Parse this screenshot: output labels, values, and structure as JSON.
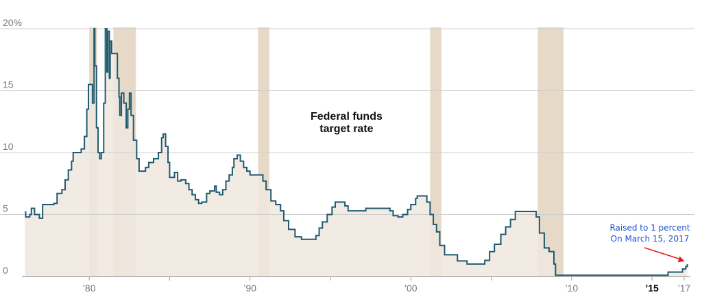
{
  "colors": {
    "line": "#1f5a6e",
    "area": "#eee8df",
    "recession": "#e6d9c8",
    "grid": "#cfcfcf",
    "annotation": "#1f4fd8",
    "arrow": "#e11b1b"
  },
  "chart_data": {
    "type": "area",
    "title": "",
    "series_label_lines": [
      "Federal funds",
      "target rate"
    ],
    "xlim": [
      1975.9,
      2017.3
    ],
    "ylim": [
      0,
      20
    ],
    "y_ticks": [
      {
        "value": 0,
        "label": "0"
      },
      {
        "value": 5,
        "label": "5"
      },
      {
        "value": 10,
        "label": "10"
      },
      {
        "value": 15,
        "label": "15"
      },
      {
        "value": 20,
        "label": "20%"
      }
    ],
    "x_ticks": [
      {
        "value": 1980,
        "label": "’80",
        "bold": false
      },
      {
        "value": 1990,
        "label": "’90",
        "bold": false
      },
      {
        "value": 2000,
        "label": "’00",
        "bold": false
      },
      {
        "value": 2010,
        "label": "’10",
        "bold": false
      },
      {
        "value": 2015,
        "label": "’15",
        "bold": true
      },
      {
        "value": 2017,
        "label": "’17",
        "bold": false
      }
    ],
    "minor_x_ticks": [
      1985,
      1995,
      2005
    ],
    "recessions": [
      [
        1980.0,
        1980.5
      ],
      [
        1981.5,
        1982.9
      ],
      [
        1990.5,
        1991.2
      ],
      [
        2001.2,
        2001.9
      ],
      [
        2007.9,
        2009.5
      ]
    ],
    "series": [
      {
        "points": [
          [
            1976.0,
            5.2
          ],
          [
            1976.05,
            4.8
          ],
          [
            1976.3,
            5.0
          ],
          [
            1976.4,
            5.5
          ],
          [
            1976.6,
            5.0
          ],
          [
            1976.9,
            4.7
          ],
          [
            1977.0,
            4.7
          ],
          [
            1977.1,
            5.8
          ],
          [
            1977.8,
            5.9
          ],
          [
            1978.0,
            6.7
          ],
          [
            1978.3,
            7.0
          ],
          [
            1978.5,
            7.8
          ],
          [
            1978.7,
            8.6
          ],
          [
            1978.9,
            9.3
          ],
          [
            1979.0,
            10.0
          ],
          [
            1979.5,
            10.3
          ],
          [
            1979.7,
            11.3
          ],
          [
            1979.85,
            13.5
          ],
          [
            1979.95,
            15.5
          ],
          [
            1980.15,
            15.5
          ],
          [
            1980.2,
            14.0
          ],
          [
            1980.3,
            20.0
          ],
          [
            1980.35,
            17.0
          ],
          [
            1980.45,
            12.0
          ],
          [
            1980.55,
            10.0
          ],
          [
            1980.65,
            9.5
          ],
          [
            1980.75,
            10.0
          ],
          [
            1980.9,
            14.0
          ],
          [
            1981.0,
            20.0
          ],
          [
            1981.1,
            16.5
          ],
          [
            1981.15,
            19.8
          ],
          [
            1981.25,
            16.0
          ],
          [
            1981.3,
            19.0
          ],
          [
            1981.4,
            18.0
          ],
          [
            1981.6,
            18.0
          ],
          [
            1981.75,
            16.0
          ],
          [
            1981.85,
            14.5
          ],
          [
            1981.9,
            13.0
          ],
          [
            1982.0,
            14.8
          ],
          [
            1982.15,
            14.0
          ],
          [
            1982.3,
            12.0
          ],
          [
            1982.4,
            13.5
          ],
          [
            1982.5,
            14.8
          ],
          [
            1982.6,
            13.0
          ],
          [
            1982.75,
            11.0
          ],
          [
            1982.95,
            9.5
          ],
          [
            1983.1,
            8.5
          ],
          [
            1983.5,
            8.8
          ],
          [
            1983.7,
            9.2
          ],
          [
            1984.0,
            9.5
          ],
          [
            1984.3,
            10.0
          ],
          [
            1984.5,
            11.2
          ],
          [
            1984.6,
            11.5
          ],
          [
            1984.75,
            10.5
          ],
          [
            1984.9,
            9.2
          ],
          [
            1985.0,
            8.0
          ],
          [
            1985.3,
            8.4
          ],
          [
            1985.5,
            7.7
          ],
          [
            1985.7,
            7.8
          ],
          [
            1986.0,
            7.5
          ],
          [
            1986.2,
            7.0
          ],
          [
            1986.4,
            6.6
          ],
          [
            1986.6,
            6.2
          ],
          [
            1986.8,
            5.9
          ],
          [
            1987.0,
            6.0
          ],
          [
            1987.3,
            6.7
          ],
          [
            1987.5,
            6.9
          ],
          [
            1987.8,
            7.3
          ],
          [
            1987.9,
            6.8
          ],
          [
            1988.1,
            6.6
          ],
          [
            1988.3,
            7.0
          ],
          [
            1988.5,
            7.7
          ],
          [
            1988.7,
            8.2
          ],
          [
            1988.9,
            8.8
          ],
          [
            1989.0,
            9.5
          ],
          [
            1989.2,
            9.8
          ],
          [
            1989.4,
            9.3
          ],
          [
            1989.6,
            8.8
          ],
          [
            1989.8,
            8.5
          ],
          [
            1990.0,
            8.2
          ],
          [
            1990.8,
            7.7
          ],
          [
            1991.0,
            7.0
          ],
          [
            1991.3,
            6.1
          ],
          [
            1991.6,
            5.8
          ],
          [
            1991.9,
            5.3
          ],
          [
            1992.1,
            4.5
          ],
          [
            1992.4,
            3.8
          ],
          [
            1992.8,
            3.2
          ],
          [
            1993.2,
            3.0
          ],
          [
            1993.5,
            3.0
          ],
          [
            1994.1,
            3.3
          ],
          [
            1994.3,
            3.9
          ],
          [
            1994.5,
            4.4
          ],
          [
            1994.8,
            5.0
          ],
          [
            1995.1,
            5.6
          ],
          [
            1995.3,
            6.0
          ],
          [
            1995.9,
            5.7
          ],
          [
            1996.1,
            5.3
          ],
          [
            1997.2,
            5.5
          ],
          [
            1998.0,
            5.5
          ],
          [
            1998.7,
            5.3
          ],
          [
            1998.9,
            4.9
          ],
          [
            1999.2,
            4.8
          ],
          [
            1999.5,
            5.0
          ],
          [
            1999.8,
            5.4
          ],
          [
            2000.0,
            5.8
          ],
          [
            2000.3,
            6.3
          ],
          [
            2000.4,
            6.5
          ],
          [
            2000.8,
            6.5
          ],
          [
            2001.0,
            6.0
          ],
          [
            2001.2,
            5.0
          ],
          [
            2001.4,
            4.2
          ],
          [
            2001.6,
            3.6
          ],
          [
            2001.8,
            2.5
          ],
          [
            2002.1,
            1.75
          ],
          [
            2002.9,
            1.25
          ],
          [
            2003.5,
            1.0
          ],
          [
            2004.4,
            1.0
          ],
          [
            2004.6,
            1.3
          ],
          [
            2004.9,
            2.0
          ],
          [
            2005.2,
            2.6
          ],
          [
            2005.6,
            3.4
          ],
          [
            2005.9,
            4.0
          ],
          [
            2006.2,
            4.6
          ],
          [
            2006.5,
            5.25
          ],
          [
            2007.6,
            5.25
          ],
          [
            2007.8,
            4.8
          ],
          [
            2008.0,
            3.5
          ],
          [
            2008.3,
            2.3
          ],
          [
            2008.6,
            2.0
          ],
          [
            2008.9,
            1.0
          ],
          [
            2009.0,
            0.1
          ],
          [
            2015.9,
            0.1
          ],
          [
            2016.0,
            0.35
          ],
          [
            2016.9,
            0.6
          ],
          [
            2017.1,
            0.8
          ],
          [
            2017.2,
            1.0
          ]
        ]
      }
    ],
    "annotation": {
      "lines": [
        "Raised to 1 percent",
        "On March 15, 2017"
      ],
      "x": 2017.2,
      "y": 1.0
    }
  }
}
